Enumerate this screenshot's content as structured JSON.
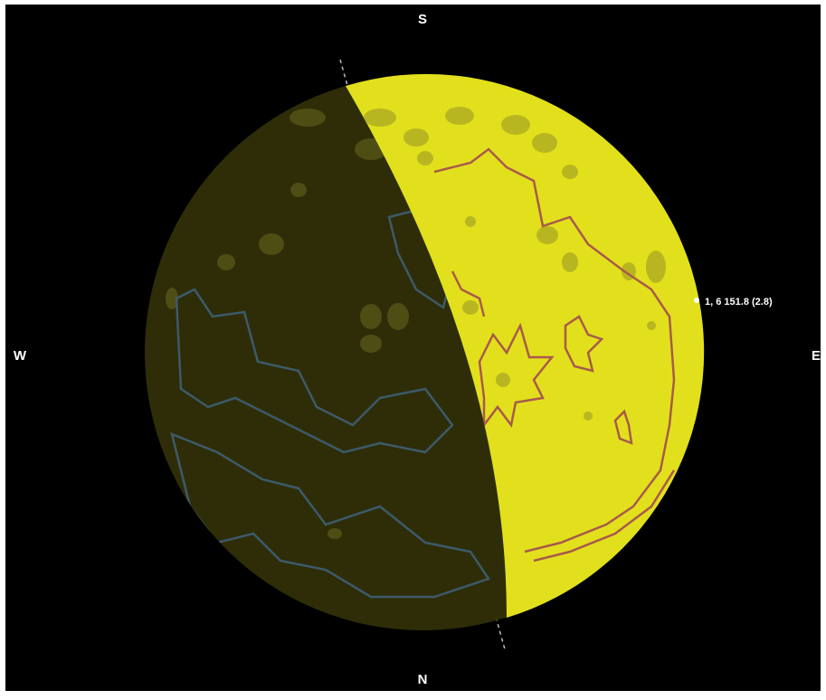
{
  "compass": {
    "top": "S",
    "bottom": "N",
    "left": "W",
    "right": "E"
  },
  "marker_label": "1, 6 151.8 (2.8)"
}
